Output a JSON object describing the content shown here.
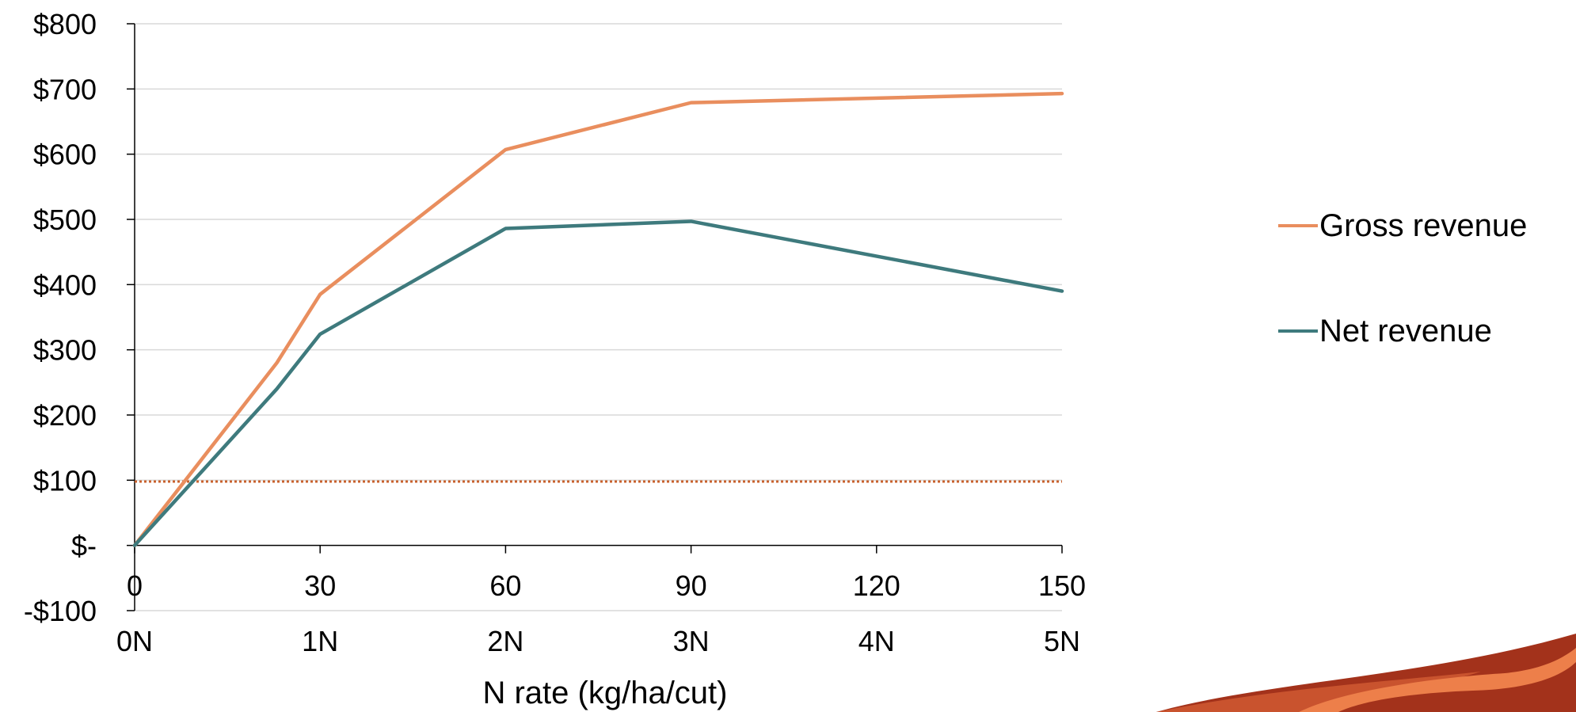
{
  "chart_data": {
    "type": "line",
    "x": [
      0,
      23,
      30,
      60,
      90,
      150
    ],
    "series": [
      {
        "name": "Gross revenue",
        "color": "#E98E5E",
        "values": [
          0,
          280,
          385,
          607,
          679,
          693
        ]
      },
      {
        "name": "Net revenue",
        "color": "#3E7A7D",
        "values": [
          0,
          240,
          324,
          486,
          497,
          390
        ]
      }
    ],
    "reference_line": {
      "y": 98,
      "color": "#C8612C",
      "style": "dotted"
    },
    "xlim": [
      0,
      150
    ],
    "ylim": [
      -100,
      800
    ],
    "x_ticks": [
      "0",
      "30",
      "60",
      "90",
      "120",
      "150"
    ],
    "x_ticks_secondary": [
      "0N",
      "1N",
      "2N",
      "3N",
      "4N",
      "5N"
    ],
    "y_ticks": [
      "-$100",
      "$-",
      "$100",
      "$200",
      "$300",
      "$400",
      "$500",
      "$600",
      "$700",
      "$800"
    ],
    "xlabel": "N rate (kg/ha/cut)",
    "ylabel": "",
    "grid": true,
    "legend_position": "right",
    "decoration_colors": [
      "#A3321B",
      "#C9532E",
      "#ED7F4A"
    ]
  }
}
